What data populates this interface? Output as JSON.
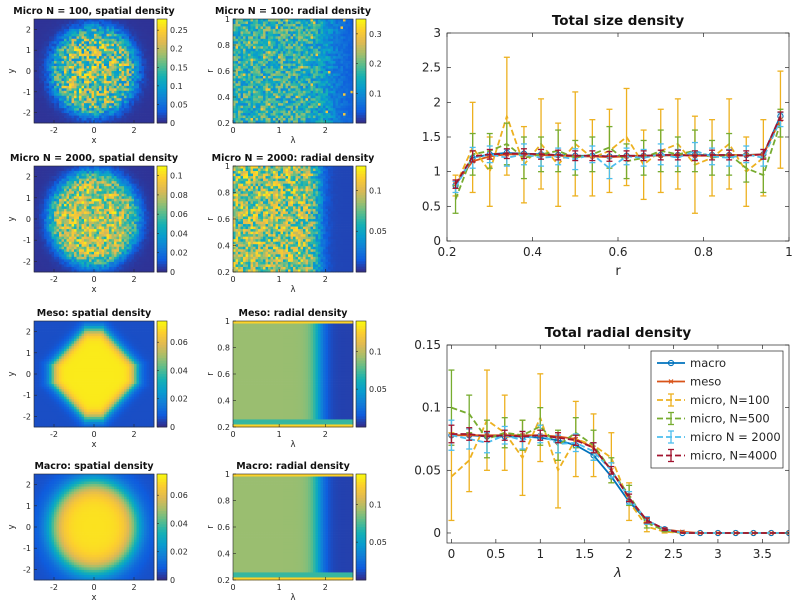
{
  "chart_data": [
    {
      "type": "heatmap",
      "title": "Micro N = 100, spatial density",
      "xlabel": "x",
      "ylabel": "y",
      "xlim": [
        -3,
        3
      ],
      "ylim": [
        -2.5,
        2.5
      ],
      "x_ticks": [
        "-2",
        "0",
        "2"
      ],
      "y_ticks": [
        "2",
        "1",
        "0",
        "-1",
        "-2"
      ],
      "colorbar_ticks": [
        "0.25",
        "0.2",
        "0.15",
        "0.1",
        "0.05",
        "0"
      ],
      "clim": [
        0,
        0.28
      ],
      "pattern": "noisy disk",
      "disk_radius": 2.1
    },
    {
      "type": "heatmap",
      "title": "Micro N = 100: radial density",
      "xlabel": "λ",
      "ylabel": "r",
      "xlim": [
        0,
        2.6
      ],
      "ylim": [
        0.2,
        1
      ],
      "x_ticks": [
        "0",
        "1",
        "2"
      ],
      "y_ticks": [
        "1",
        "0.8",
        "0.6",
        "0.4",
        "0.2"
      ],
      "colorbar_ticks": [
        "0.3",
        "0.2",
        "0.1"
      ],
      "clim": [
        0,
        0.35
      ],
      "pattern": "noisy streaks"
    },
    {
      "type": "heatmap",
      "title": "Micro N = 2000, spatial density",
      "xlabel": "x",
      "ylabel": "y",
      "xlim": [
        -3,
        3
      ],
      "ylim": [
        -2.5,
        2.5
      ],
      "x_ticks": [
        "-2",
        "0",
        "2"
      ],
      "y_ticks": [
        "2",
        "1",
        "0",
        "-1",
        "-2"
      ],
      "colorbar_ticks": [
        "0.1",
        "0.08",
        "0.06",
        "0.04",
        "0.02",
        "0"
      ],
      "clim": [
        0,
        0.11
      ],
      "pattern": "noisy disk",
      "disk_radius": 2.2
    },
    {
      "type": "heatmap",
      "title": "Micro N = 2000: radial density",
      "xlabel": "λ",
      "ylabel": "r",
      "xlim": [
        0,
        2.6
      ],
      "ylim": [
        0.2,
        1
      ],
      "x_ticks": [
        "0",
        "1",
        "2"
      ],
      "y_ticks": [
        "1",
        "0.8",
        "0.6",
        "0.4",
        "0.2"
      ],
      "colorbar_ticks": [
        "0.1",
        "0.05"
      ],
      "clim": [
        0,
        0.13
      ],
      "pattern": "streaks with edge",
      "edge": 1.85
    },
    {
      "type": "heatmap",
      "title": "Meso: spatial density",
      "xlabel": "x",
      "ylabel": "y",
      "xlim": [
        -3,
        3
      ],
      "ylim": [
        -2.5,
        2.5
      ],
      "x_ticks": [
        "-2",
        "0",
        "2"
      ],
      "y_ticks": [
        "2",
        "1",
        "0",
        "-1",
        "-2"
      ],
      "colorbar_ticks": [
        "0.06",
        "0.04",
        "0.02",
        "0"
      ],
      "clim": [
        0,
        0.075
      ],
      "pattern": "smooth octagon",
      "disk_radius": 2.1
    },
    {
      "type": "heatmap",
      "title": "Meso: radial density",
      "xlabel": "λ",
      "ylabel": "r",
      "xlim": [
        0,
        2.6
      ],
      "ylim": [
        0.2,
        1
      ],
      "x_ticks": [
        "0",
        "1",
        "2"
      ],
      "y_ticks": [
        "1",
        "0.8",
        "0.6",
        "0.4",
        "0.2"
      ],
      "colorbar_ticks": [
        "0.1",
        "0.05"
      ],
      "clim": [
        0,
        0.14
      ],
      "pattern": "smooth edge",
      "edge": 1.85
    },
    {
      "type": "heatmap",
      "title": "Macro: spatial density",
      "xlabel": "x",
      "ylabel": "y",
      "xlim": [
        -3,
        3
      ],
      "ylim": [
        -2.5,
        2.5
      ],
      "x_ticks": [
        "-2",
        "0",
        "2"
      ],
      "y_ticks": [
        "2",
        "1",
        "0",
        "-1",
        "-2"
      ],
      "colorbar_ticks": [
        "0.06",
        "0.04",
        "0.02",
        "0"
      ],
      "clim": [
        0,
        0.075
      ],
      "pattern": "smooth disk",
      "disk_radius": 2.1
    },
    {
      "type": "heatmap",
      "title": "Macro: radial density",
      "xlabel": "λ",
      "ylabel": "r",
      "xlim": [
        0,
        2.6
      ],
      "ylim": [
        0.2,
        1
      ],
      "x_ticks": [
        "0",
        "1",
        "2"
      ],
      "y_ticks": [
        "1",
        "0.8",
        "0.6",
        "0.4",
        "0.2"
      ],
      "colorbar_ticks": [
        "0.1",
        "0.05"
      ],
      "clim": [
        0,
        0.14
      ],
      "pattern": "smooth edge",
      "edge": 1.85
    },
    {
      "type": "line",
      "title": "Total size density",
      "xlabel": "r",
      "ylabel": "",
      "xlim": [
        0.2,
        1
      ],
      "ylim": [
        0,
        3
      ],
      "x_ticks": [
        0.2,
        0.4,
        0.6,
        0.8,
        1
      ],
      "x_tick_labels": [
        "0.2",
        "0.4",
        "0.6",
        "0.8",
        "1"
      ],
      "y_ticks": [
        0,
        0.5,
        1,
        1.5,
        2,
        2.5,
        3
      ],
      "y_tick_labels": [
        "0",
        "0.5",
        "1",
        "1.5",
        "2",
        "2.5",
        "3"
      ],
      "x": [
        0.22,
        0.26,
        0.3,
        0.34,
        0.38,
        0.42,
        0.46,
        0.5,
        0.54,
        0.58,
        0.62,
        0.66,
        0.7,
        0.74,
        0.78,
        0.82,
        0.86,
        0.9,
        0.94,
        0.98
      ],
      "series": [
        {
          "color": "#0072BD",
          "style": "solid",
          "marker": "circle",
          "y": [
            0.8,
            1.2,
            1.25,
            1.27,
            1.26,
            1.25,
            1.24,
            1.23,
            1.23,
            1.22,
            1.23,
            1.23,
            1.24,
            1.24,
            1.24,
            1.24,
            1.24,
            1.24,
            1.25,
            1.8
          ],
          "err": []
        },
        {
          "color": "#D95319",
          "style": "solid",
          "marker": "x",
          "y": [
            0.82,
            1.15,
            1.22,
            1.25,
            1.25,
            1.24,
            1.23,
            1.22,
            1.22,
            1.21,
            1.22,
            1.23,
            1.23,
            1.24,
            1.23,
            1.23,
            1.24,
            1.24,
            1.25,
            1.75
          ],
          "err": []
        },
        {
          "color": "#EDB120",
          "style": "dashed",
          "marker": "",
          "y": [
            0.8,
            1.35,
            1.0,
            1.8,
            1.1,
            1.4,
            1.1,
            1.4,
            1.2,
            1.3,
            1.5,
            1.1,
            1.3,
            1.4,
            1.1,
            1.2,
            1.4,
            1.0,
            1.2,
            1.75
          ],
          "err": [
            0.15,
            0.65,
            0.5,
            0.85,
            0.55,
            0.65,
            0.6,
            0.75,
            0.55,
            0.6,
            0.7,
            0.5,
            0.6,
            0.65,
            0.7,
            0.55,
            0.65,
            0.5,
            0.55,
            0.7
          ]
        },
        {
          "color": "#77AC30",
          "style": "dashed",
          "marker": "",
          "y": [
            0.6,
            1.25,
            1.3,
            1.4,
            1.2,
            1.25,
            1.3,
            1.2,
            1.25,
            1.35,
            1.15,
            1.2,
            1.3,
            1.25,
            1.3,
            1.2,
            1.25,
            1.05,
            0.95,
            1.7
          ],
          "err": [
            0.2,
            0.3,
            0.25,
            0.3,
            0.3,
            0.25,
            0.3,
            0.25,
            0.25,
            0.3,
            0.25,
            0.25,
            0.3,
            0.25,
            0.3,
            0.25,
            0.3,
            0.2,
            0.25,
            0.2
          ]
        },
        {
          "color": "#4DBEEE",
          "style": "dashed",
          "marker": "",
          "y": [
            0.78,
            1.2,
            1.25,
            1.2,
            1.25,
            1.2,
            1.22,
            1.18,
            1.25,
            1.05,
            1.22,
            1.2,
            1.25,
            1.2,
            1.3,
            1.22,
            1.2,
            1.25,
            1.2,
            1.75
          ],
          "err": [
            0.08,
            0.15,
            0.12,
            0.12,
            0.15,
            0.12,
            0.12,
            0.15,
            0.12,
            0.15,
            0.12,
            0.12,
            0.15,
            0.12,
            0.12,
            0.12,
            0.12,
            0.12,
            0.12,
            0.1
          ]
        },
        {
          "color": "#A2142F",
          "style": "dashed",
          "marker": "",
          "y": [
            0.82,
            1.22,
            1.25,
            1.26,
            1.26,
            1.25,
            1.24,
            1.23,
            1.23,
            1.22,
            1.23,
            1.23,
            1.24,
            1.24,
            1.23,
            1.24,
            1.24,
            1.23,
            1.25,
            1.8
          ],
          "err": [
            0.06,
            0.08,
            0.07,
            0.07,
            0.07,
            0.07,
            0.07,
            0.07,
            0.07,
            0.07,
            0.07,
            0.07,
            0.07,
            0.07,
            0.07,
            0.07,
            0.07,
            0.07,
            0.07,
            0.06
          ]
        }
      ]
    },
    {
      "type": "line",
      "title": "Total radial density",
      "xlabel": "λ",
      "ylabel": "",
      "xlim": [
        -0.05,
        3.8
      ],
      "ylim": [
        -0.008,
        0.15
      ],
      "x_ticks": [
        0,
        0.5,
        1,
        1.5,
        2,
        2.5,
        3,
        3.5
      ],
      "x_tick_labels": [
        "0",
        "0.5",
        "1",
        "1.5",
        "2",
        "2.5",
        "3",
        "3.5"
      ],
      "y_ticks": [
        0,
        0.05,
        0.1,
        0.15
      ],
      "y_tick_labels": [
        "0",
        "0.05",
        "0.1",
        "0.15"
      ],
      "x": [
        0,
        0.2,
        0.4,
        0.6,
        0.8,
        1.0,
        1.2,
        1.4,
        1.6,
        1.8,
        2.0,
        2.2,
        2.4,
        2.6,
        2.8,
        3.0,
        3.2,
        3.4,
        3.6,
        3.8
      ],
      "series": [
        {
          "name": "macro",
          "color": "#0072BD",
          "style": "solid",
          "marker": "circle",
          "y": [
            0.078,
            0.078,
            0.077,
            0.077,
            0.077,
            0.076,
            0.074,
            0.07,
            0.062,
            0.045,
            0.025,
            0.01,
            0.003,
            0,
            0,
            0,
            0,
            0,
            0,
            0
          ],
          "err": []
        },
        {
          "name": "meso",
          "color": "#D95319",
          "style": "solid",
          "marker": "x",
          "y": [
            0.078,
            0.078,
            0.078,
            0.078,
            0.078,
            0.078,
            0.077,
            0.075,
            0.068,
            0.05,
            0.028,
            0.01,
            0.003,
            0.001,
            0,
            0,
            0,
            0,
            0,
            0
          ],
          "err": []
        },
        {
          "name": "micro, N=100",
          "color": "#EDB120",
          "style": "dashed",
          "marker": "",
          "y": [
            0.045,
            0.058,
            0.09,
            0.08,
            0.06,
            0.092,
            0.05,
            0.075,
            0.07,
            0.06,
            0.025,
            0.005,
            0.001,
            0,
            0,
            0,
            0,
            0,
            0,
            0
          ],
          "err": [
            0.035,
            0.025,
            0.04,
            0.03,
            0.03,
            0.035,
            0.03,
            0.03,
            0.025,
            0.02,
            0.015,
            0.004,
            0.001,
            0,
            0,
            0,
            0,
            0,
            0,
            0
          ]
        },
        {
          "name": "micro, N=500",
          "color": "#77AC30",
          "style": "dashed",
          "marker": "",
          "y": [
            0.1,
            0.095,
            0.075,
            0.08,
            0.078,
            0.085,
            0.07,
            0.08,
            0.07,
            0.05,
            0.03,
            0.008,
            0.002,
            0,
            0,
            0,
            0,
            0,
            0,
            0
          ],
          "err": [
            0.03,
            0.015,
            0.015,
            0.012,
            0.012,
            0.015,
            0.012,
            0.012,
            0.012,
            0.01,
            0.008,
            0.004,
            0.001,
            0,
            0,
            0,
            0,
            0,
            0,
            0
          ]
        },
        {
          "name": "micro N = 2000",
          "color": "#4DBEEE",
          "style": "dashed",
          "marker": "",
          "y": [
            0.078,
            0.075,
            0.072,
            0.078,
            0.074,
            0.079,
            0.071,
            0.072,
            0.065,
            0.05,
            0.028,
            0.01,
            0.003,
            0,
            0,
            0,
            0,
            0,
            0,
            0
          ],
          "err": [
            0.012,
            0.008,
            0.008,
            0.007,
            0.007,
            0.007,
            0.007,
            0.007,
            0.007,
            0.006,
            0.005,
            0.003,
            0.001,
            0,
            0,
            0,
            0,
            0,
            0,
            0
          ]
        },
        {
          "name": "micro, N=4000",
          "color": "#A2142F",
          "style": "dashed",
          "marker": "",
          "y": [
            0.079,
            0.079,
            0.077,
            0.078,
            0.077,
            0.078,
            0.076,
            0.074,
            0.068,
            0.05,
            0.028,
            0.01,
            0.003,
            0,
            0,
            0,
            0,
            0,
            0,
            0
          ],
          "err": [
            0.007,
            0.005,
            0.004,
            0.004,
            0.004,
            0.004,
            0.004,
            0.004,
            0.004,
            0.003,
            0.003,
            0.002,
            0.001,
            0,
            0,
            0,
            0,
            0,
            0,
            0
          ]
        }
      ]
    }
  ]
}
